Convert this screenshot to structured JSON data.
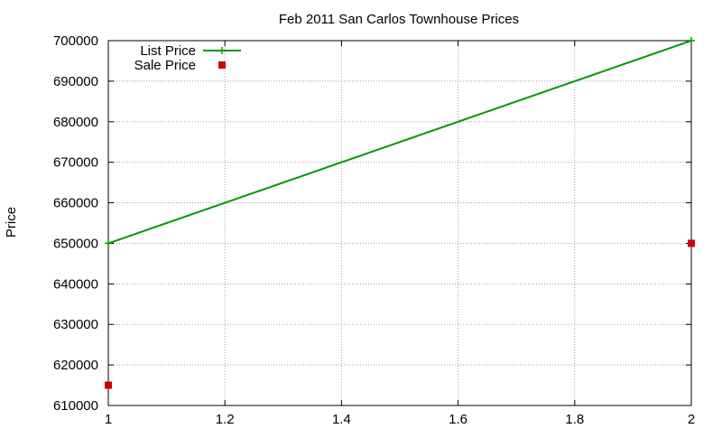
{
  "chart_data": {
    "type": "line",
    "title": "Feb 2011 San Carlos Townhouse Prices",
    "xlabel": "",
    "ylabel": "Price",
    "xlim": [
      1,
      2
    ],
    "ylim": [
      610000,
      700000
    ],
    "x_ticks": [
      {
        "value": 1,
        "label": "1"
      },
      {
        "value": 1.2,
        "label": "1.2"
      },
      {
        "value": 1.4,
        "label": "1.4"
      },
      {
        "value": 1.6,
        "label": "1.6"
      },
      {
        "value": 1.8,
        "label": "1.8"
      },
      {
        "value": 2,
        "label": "2"
      }
    ],
    "y_ticks": [
      {
        "value": 610000,
        "label": "610000"
      },
      {
        "value": 620000,
        "label": "620000"
      },
      {
        "value": 630000,
        "label": "630000"
      },
      {
        "value": 640000,
        "label": "640000"
      },
      {
        "value": 650000,
        "label": "650000"
      },
      {
        "value": 660000,
        "label": "660000"
      },
      {
        "value": 670000,
        "label": "670000"
      },
      {
        "value": 680000,
        "label": "680000"
      },
      {
        "value": 690000,
        "label": "690000"
      },
      {
        "value": 700000,
        "label": "700000"
      }
    ],
    "grid": true,
    "legend_position": "top-left",
    "series": [
      {
        "name": "List Price",
        "style": "linespoints",
        "marker": "plus",
        "color": "#009900",
        "points": [
          {
            "x": 1,
            "y": 650000
          },
          {
            "x": 2,
            "y": 700000
          }
        ]
      },
      {
        "name": "Sale Price",
        "style": "points",
        "marker": "square",
        "color": "#cc0000",
        "points": [
          {
            "x": 1,
            "y": 615000
          },
          {
            "x": 2,
            "y": 650000
          }
        ]
      }
    ]
  }
}
